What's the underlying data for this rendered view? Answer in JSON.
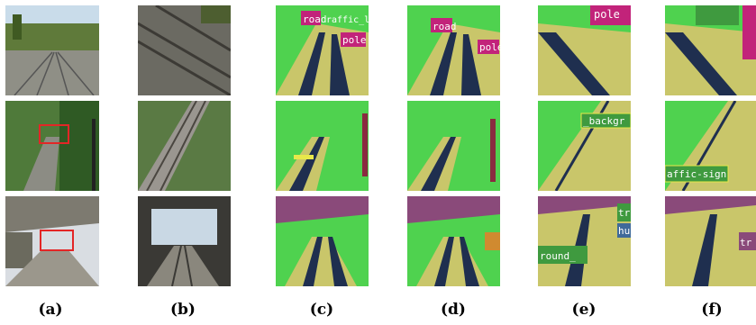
{
  "figure": {
    "captions": [
      "(a)",
      "(b)",
      "(c)",
      "(d)",
      "(e)",
      "(f)"
    ],
    "segmentation_labels": {
      "road": "road",
      "traffic_light": "raffic_light",
      "pole": "pole",
      "pole_partial": "pole",
      "background_partial": "_backgr",
      "traffic_sign_partial": "affic-sign",
      "ground_partial": "round_",
      "tr_partial": "tr",
      "hu_partial": "hu"
    },
    "colors": {
      "vegetation": "#4fd24f",
      "terrain": "#c9c66a",
      "road_surface": "#1f2f4f",
      "pole": "#c2237a",
      "traffic_sign": "#e8e84a",
      "sky": "#6ab8e8",
      "building": "#8a4a7a",
      "highlight_box": "#e32626"
    }
  }
}
